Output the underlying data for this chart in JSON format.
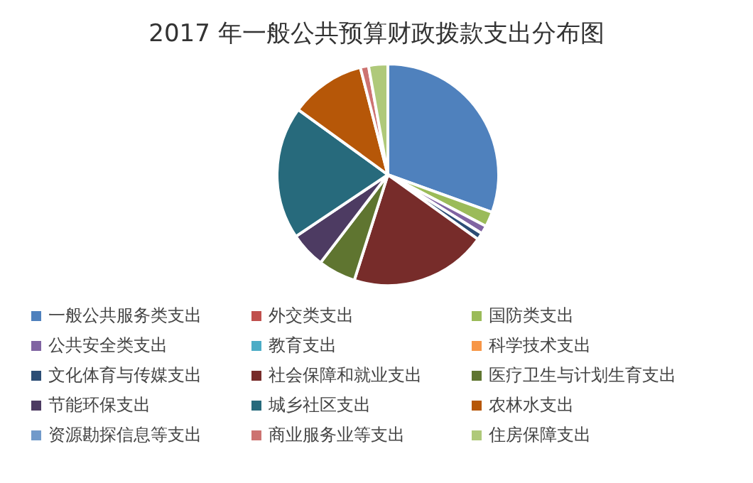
{
  "chart_data": {
    "type": "pie",
    "title": "2017 年一般公共预算财政拨款支出分布图",
    "categories": [
      "一般公共服务类支出",
      "外交类支出",
      "国防类支出",
      "公共安全类支出",
      "教育支出",
      "科学技术支出",
      "文化体育与传媒支出",
      "社会保障和就业支出",
      "医疗卫生与计划生育支出",
      "节能环保支出",
      "城乡社区支出",
      "农林水支出",
      "资源勘探信息等支出",
      "商业服务业等支出",
      "住房保障支出"
    ],
    "values": [
      30.5,
      null,
      2.2,
      1.2,
      null,
      null,
      1.0,
      20,
      5.5,
      5.2,
      19.4,
      11,
      null,
      1.2,
      2.8
    ],
    "colors": [
      "#4f81bd",
      "#c0504d",
      "#9bbb59",
      "#8064a2",
      "#4bacc6",
      "#f79646",
      "#2c4d75",
      "#772c2a",
      "#5f7530",
      "#4d3b62",
      "#276a7c",
      "#b65708",
      "#729aca",
      "#cd7371",
      "#afc97a"
    ],
    "legend": "bottom"
  }
}
